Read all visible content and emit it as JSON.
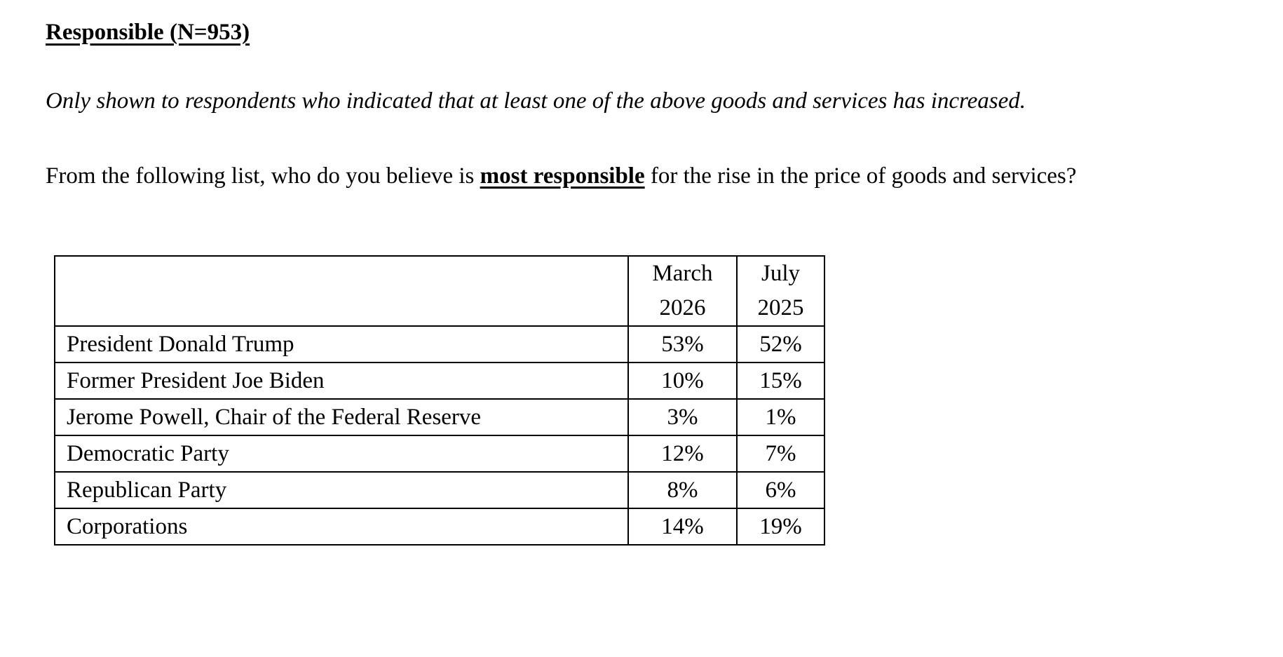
{
  "document": {
    "title": "Responsible (N=953)",
    "note": "Only shown to respondents who indicated that at least one of the above goods and services has increased.",
    "question": {
      "prefix": "From the following list, who do you believe is ",
      "emphasis": "most responsible",
      "suffix": " for the rise in the price of goods and services?"
    }
  },
  "table": {
    "columns": [
      "",
      "March 2026",
      "July 2025"
    ],
    "rows": [
      [
        "President Donald Trump",
        "53%",
        "52%"
      ],
      [
        "Former President Joe Biden",
        "10%",
        "15%"
      ],
      [
        "Jerome Powell, Chair of the Federal Reserve",
        "3%",
        "1%"
      ],
      [
        "Democratic Party",
        "12%",
        "7%"
      ],
      [
        "Republican Party",
        "8%",
        "6%"
      ],
      [
        "Corporations",
        "14%",
        "19%"
      ]
    ]
  }
}
